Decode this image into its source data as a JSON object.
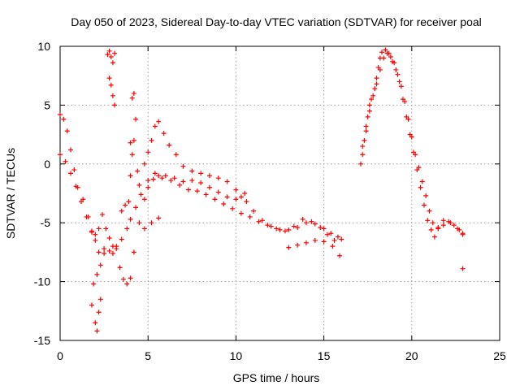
{
  "chart_data": {
    "type": "scatter",
    "title": "Day 050 of 2023, Sidereal Day-to-day VTEC variation (SDTVAR) for receiver poal",
    "xlabel": "GPS time / hours",
    "ylabel": "SDTVAR / TECUs",
    "xlim": [
      0,
      25
    ],
    "ylim": [
      -15,
      10
    ],
    "xticks": [
      0,
      5,
      10,
      15,
      20,
      25
    ],
    "yticks": [
      -15,
      -10,
      -5,
      0,
      5,
      10
    ],
    "xtick_labels": [
      "0",
      "5",
      "10",
      "15",
      "20",
      "25"
    ],
    "ytick_labels": [
      "-15",
      "-10",
      "-5",
      "0",
      "5",
      "10"
    ],
    "grid": true,
    "marker": "plus",
    "color": "#ff0000",
    "series": [
      {
        "name": "SDTVAR",
        "points": [
          [
            0.0,
            4.2
          ],
          [
            0.2,
            3.8
          ],
          [
            0.4,
            2.8
          ],
          [
            0.6,
            1.2
          ],
          [
            0.8,
            -0.5
          ],
          [
            1.0,
            -2.0
          ],
          [
            1.3,
            -3.0
          ],
          [
            1.6,
            -4.5
          ],
          [
            1.8,
            -5.8
          ],
          [
            2.0,
            -6.0
          ],
          [
            2.2,
            -5.5
          ],
          [
            2.4,
            -4.3
          ],
          [
            2.6,
            -5.5
          ],
          [
            2.8,
            -6.3
          ],
          [
            3.0,
            -7.0
          ],
          [
            3.2,
            -7.2
          ],
          [
            3.4,
            -8.8
          ],
          [
            3.6,
            -9.8
          ],
          [
            3.8,
            -10.2
          ],
          [
            4.0,
            -9.7
          ],
          [
            4.2,
            -7.5
          ],
          [
            4.5,
            -5.0
          ],
          [
            4.8,
            -3.0
          ],
          [
            5.0,
            -2.0
          ],
          [
            5.3,
            -1.3
          ],
          [
            5.6,
            -1.0
          ],
          [
            6.0,
            -1.0
          ],
          [
            6.5,
            -1.2
          ],
          [
            7.0,
            -1.5
          ],
          [
            7.5,
            -1.4
          ],
          [
            8.0,
            -1.6
          ],
          [
            8.5,
            -2.0
          ],
          [
            9.0,
            -2.4
          ],
          [
            9.5,
            -2.8
          ],
          [
            10.0,
            -3.0
          ],
          [
            10.3,
            -2.8
          ],
          [
            10.6,
            -3.2
          ],
          [
            11.0,
            -4.0
          ],
          [
            11.5,
            -4.8
          ],
          [
            12.0,
            -5.3
          ],
          [
            12.5,
            -5.6
          ],
          [
            13.0,
            -5.6
          ],
          [
            13.5,
            -5.4
          ],
          [
            14.0,
            -5.0
          ],
          [
            14.5,
            -5.1
          ],
          [
            15.0,
            -5.5
          ],
          [
            15.4,
            -5.9
          ],
          [
            15.8,
            -6.2
          ],
          [
            0.0,
            0.8
          ],
          [
            0.3,
            0.2
          ],
          [
            0.6,
            -0.8
          ],
          [
            0.9,
            -1.9
          ],
          [
            1.2,
            -3.2
          ],
          [
            1.5,
            -4.5
          ],
          [
            1.8,
            -5.7
          ],
          [
            2.0,
            -6.5
          ],
          [
            2.2,
            -7.5
          ],
          [
            2.5,
            -7.2
          ],
          [
            2.8,
            -7.4
          ],
          [
            3.0,
            -7.6
          ],
          [
            3.2,
            -7.0
          ],
          [
            3.5,
            -6.4
          ],
          [
            3.8,
            -5.5
          ],
          [
            4.0,
            -4.7
          ],
          [
            4.3,
            -3.7
          ],
          [
            4.6,
            -2.6
          ],
          [
            5.0,
            -1.4
          ],
          [
            5.4,
            -0.8
          ],
          [
            5.8,
            -1.2
          ],
          [
            6.3,
            -1.4
          ],
          [
            6.8,
            -1.8
          ],
          [
            7.3,
            -2.2
          ],
          [
            7.8,
            -2.3
          ],
          [
            8.3,
            -2.6
          ],
          [
            8.8,
            -3.0
          ],
          [
            9.3,
            -3.4
          ],
          [
            9.8,
            -3.8
          ],
          [
            10.3,
            -4.2
          ],
          [
            10.8,
            -4.5
          ],
          [
            11.3,
            -4.9
          ],
          [
            11.8,
            -5.2
          ],
          [
            12.3,
            -5.5
          ],
          [
            12.8,
            -5.7
          ],
          [
            13.3,
            -5.3
          ],
          [
            13.8,
            -4.7
          ],
          [
            14.3,
            -4.9
          ],
          [
            14.8,
            -5.4
          ],
          [
            15.2,
            -6.0
          ],
          [
            15.6,
            -6.5
          ],
          [
            16.0,
            -6.4
          ],
          [
            1.8,
            -12.0
          ],
          [
            2.0,
            -13.5
          ],
          [
            2.1,
            -14.2
          ],
          [
            2.2,
            -12.6
          ],
          [
            2.3,
            -11.5
          ],
          [
            1.9,
            -10.2
          ],
          [
            2.1,
            -9.4
          ],
          [
            2.3,
            -8.6
          ],
          [
            2.5,
            -7.6
          ],
          [
            2.7,
            9.3
          ],
          [
            2.8,
            9.6
          ],
          [
            2.9,
            9.1
          ],
          [
            3.0,
            8.6
          ],
          [
            3.1,
            9.4
          ],
          [
            2.8,
            7.3
          ],
          [
            2.9,
            6.7
          ],
          [
            3.0,
            5.8
          ],
          [
            3.1,
            5.0
          ],
          [
            3.9,
            -3.2
          ],
          [
            4.0,
            -1.0
          ],
          [
            4.1,
            0.8
          ],
          [
            4.2,
            2.0
          ],
          [
            4.3,
            3.8
          ],
          [
            4.1,
            5.6
          ],
          [
            4.2,
            6.0
          ],
          [
            4.0,
            1.8
          ],
          [
            4.4,
            -0.6
          ],
          [
            4.5,
            -1.8
          ],
          [
            4.8,
            0.0
          ],
          [
            5.0,
            1.0
          ],
          [
            5.2,
            2.0
          ],
          [
            5.4,
            3.2
          ],
          [
            5.6,
            3.6
          ],
          [
            5.9,
            2.6
          ],
          [
            6.2,
            1.6
          ],
          [
            6.6,
            0.8
          ],
          [
            7.0,
            -0.2
          ],
          [
            7.5,
            -0.6
          ],
          [
            8.0,
            -0.8
          ],
          [
            8.5,
            -1.0
          ],
          [
            9.0,
            -1.2
          ],
          [
            9.5,
            -1.5
          ],
          [
            10.0,
            -2.2
          ],
          [
            10.5,
            -2.5
          ],
          [
            4.8,
            -5.5
          ],
          [
            5.2,
            -5.0
          ],
          [
            5.6,
            -4.6
          ],
          [
            3.5,
            -4.0
          ],
          [
            3.7,
            -3.5
          ],
          [
            13.0,
            -7.1
          ],
          [
            13.5,
            -6.9
          ],
          [
            14.0,
            -6.7
          ],
          [
            14.5,
            -6.5
          ],
          [
            15.0,
            -6.6
          ],
          [
            15.5,
            -7.0
          ],
          [
            15.9,
            -7.8
          ],
          [
            17.1,
            0.0
          ],
          [
            17.2,
            0.8
          ],
          [
            17.3,
            2.0
          ],
          [
            17.4,
            3.2
          ],
          [
            17.5,
            4.0
          ],
          [
            17.6,
            5.0
          ],
          [
            17.7,
            5.5
          ],
          [
            17.9,
            6.4
          ],
          [
            18.0,
            7.3
          ],
          [
            18.1,
            8.2
          ],
          [
            18.2,
            9.0
          ],
          [
            18.3,
            9.5
          ],
          [
            18.5,
            9.7
          ],
          [
            18.7,
            9.4
          ],
          [
            18.9,
            8.7
          ],
          [
            19.1,
            8.0
          ],
          [
            19.3,
            7.0
          ],
          [
            19.5,
            5.5
          ],
          [
            19.7,
            4.0
          ],
          [
            19.9,
            2.5
          ],
          [
            20.1,
            1.0
          ],
          [
            20.3,
            -0.5
          ],
          [
            20.5,
            -2.0
          ],
          [
            20.7,
            -3.5
          ],
          [
            20.9,
            -4.8
          ],
          [
            21.1,
            -5.6
          ],
          [
            21.3,
            -6.2
          ],
          [
            21.5,
            -5.4
          ],
          [
            21.8,
            -4.8
          ],
          [
            22.1,
            -4.9
          ],
          [
            22.4,
            -5.2
          ],
          [
            22.7,
            -5.6
          ],
          [
            22.9,
            -6.0
          ],
          [
            17.2,
            1.5
          ],
          [
            17.4,
            2.8
          ],
          [
            17.6,
            4.5
          ],
          [
            17.8,
            5.8
          ],
          [
            18.0,
            6.8
          ],
          [
            18.2,
            8.0
          ],
          [
            18.4,
            9.0
          ],
          [
            18.6,
            9.4
          ],
          [
            18.8,
            9.1
          ],
          [
            19.0,
            8.6
          ],
          [
            19.2,
            7.6
          ],
          [
            19.4,
            6.6
          ],
          [
            19.6,
            5.3
          ],
          [
            19.8,
            3.8
          ],
          [
            20.0,
            2.3
          ],
          [
            20.2,
            0.8
          ],
          [
            20.4,
            -0.3
          ],
          [
            20.6,
            -1.5
          ],
          [
            20.8,
            -2.7
          ],
          [
            21.0,
            -4.0
          ],
          [
            21.2,
            -5.0
          ],
          [
            21.5,
            -5.5
          ],
          [
            21.8,
            -5.2
          ],
          [
            22.2,
            -5.0
          ],
          [
            22.6,
            -5.5
          ],
          [
            22.9,
            -5.9
          ],
          [
            22.9,
            -8.9
          ]
        ]
      }
    ]
  }
}
